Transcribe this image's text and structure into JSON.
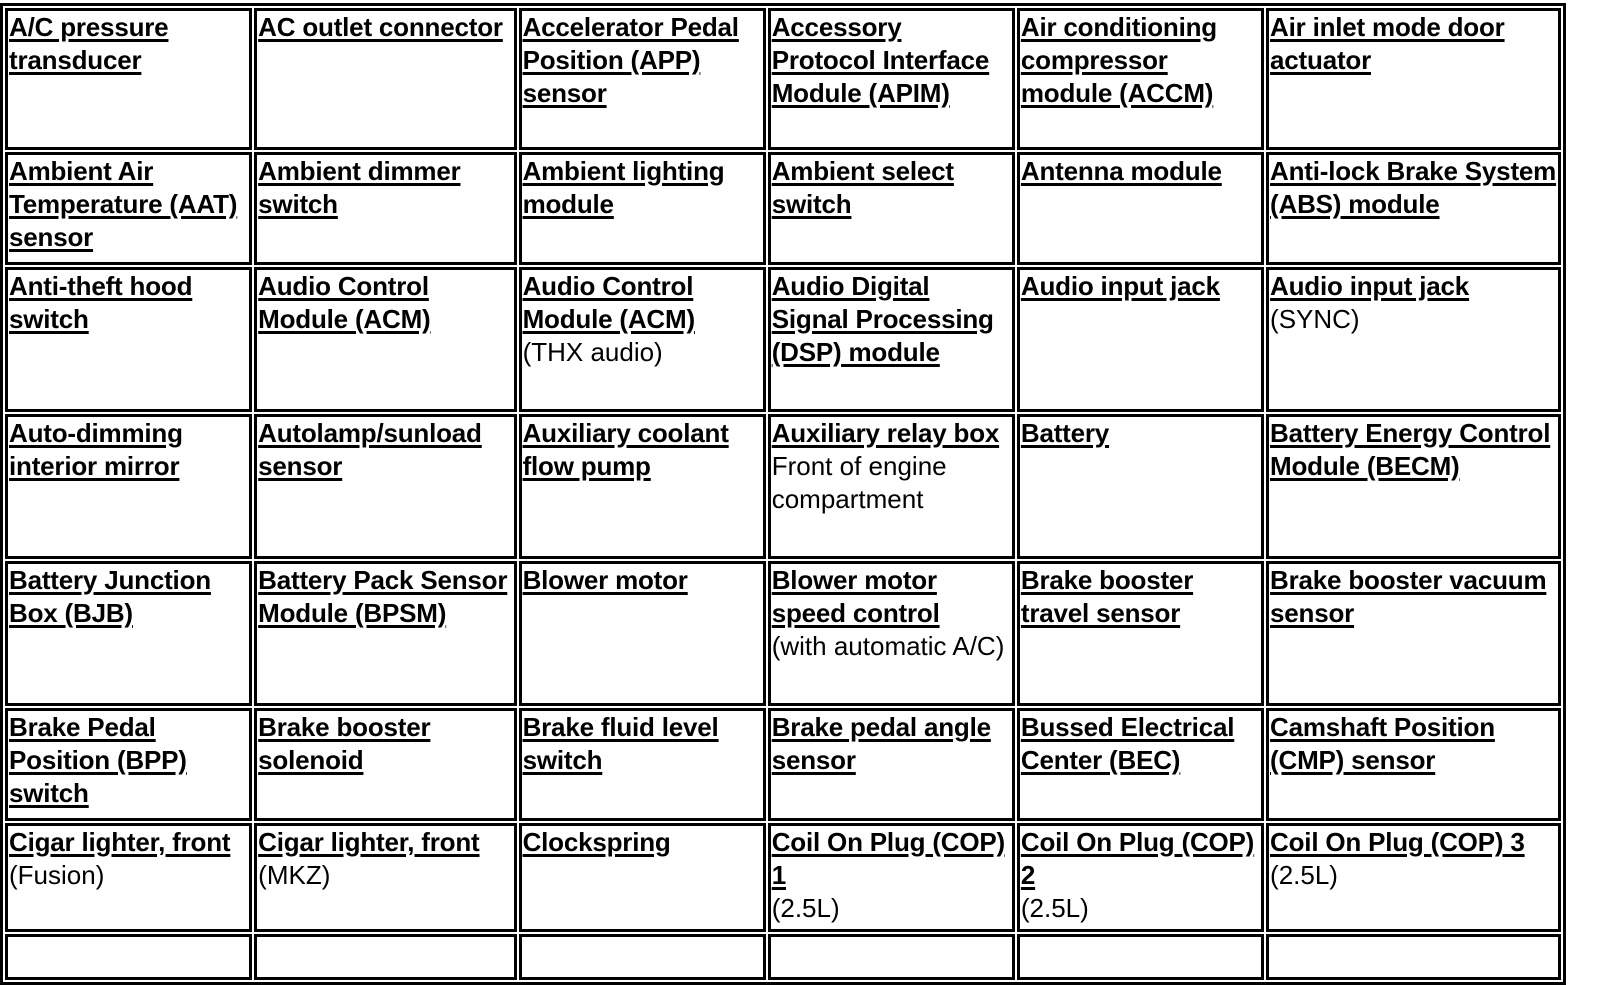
{
  "rows": [
    [
      {
        "label": "A/C pressure transducer"
      },
      {
        "label": "AC outlet connector"
      },
      {
        "label": "Accelerator Pedal Position (APP) sensor"
      },
      {
        "label": "Accessory Protocol Interface Module (APIM)"
      },
      {
        "label": "Air conditioning compressor module (ACCM)"
      },
      {
        "label": "Air inlet mode door actuator"
      }
    ],
    [
      {
        "label": "Ambient Air Temperature (AAT) sensor"
      },
      {
        "label": "Ambient dimmer switch"
      },
      {
        "label": "Ambient lighting module"
      },
      {
        "label": "Ambient select switch"
      },
      {
        "label": "Antenna module"
      },
      {
        "label": "Anti-lock Brake System (ABS) module"
      }
    ],
    [
      {
        "label": "Anti-theft hood switch"
      },
      {
        "label": "Audio Control Module (ACM)"
      },
      {
        "label": "Audio Control Module (ACM)",
        "note": "(THX audio)"
      },
      {
        "label": "Audio Digital Signal Processing (DSP) module"
      },
      {
        "label": "Audio input jack"
      },
      {
        "label": "Audio input jack",
        "note": "(SYNC)"
      }
    ],
    [
      {
        "label": "Auto-dimming interior mirror"
      },
      {
        "label": "Autolamp/sunload sensor"
      },
      {
        "label": "Auxiliary coolant flow pump"
      },
      {
        "label": "Auxiliary relay box",
        "note": "Front of engine compartment"
      },
      {
        "label": "Battery"
      },
      {
        "label": "Battery Energy Control Module (BECM)"
      }
    ],
    [
      {
        "label": "Battery Junction Box (BJB)"
      },
      {
        "label": "Battery Pack Sensor Module (BPSM)"
      },
      {
        "label": "Blower motor"
      },
      {
        "label": "Blower motor speed control",
        "note": "(with automatic A/C)"
      },
      {
        "label": "Brake booster travel sensor"
      },
      {
        "label": "Brake booster vacuum sensor"
      }
    ],
    [
      {
        "label": "Brake Pedal Position (BPP) switch"
      },
      {
        "label": "Brake booster solenoid"
      },
      {
        "label": "Brake fluid level switch"
      },
      {
        "label": "Brake pedal angle sensor"
      },
      {
        "label": "Bussed Electrical Center (BEC)"
      },
      {
        "label": "Camshaft Position (CMP) sensor"
      }
    ],
    [
      {
        "label": "Cigar lighter, front",
        "note": "(Fusion)"
      },
      {
        "label": "Cigar lighter, front",
        "note": "(MKZ)"
      },
      {
        "label": "Clockspring"
      },
      {
        "label": "Coil On Plug (COP) 1",
        "note": "(2.5L)"
      },
      {
        "label": "Coil On Plug (COP) 2",
        "note": "(2.5L)"
      },
      {
        "label": "Coil On Plug (COP) 3",
        "note": "(2.5L)"
      }
    ]
  ]
}
